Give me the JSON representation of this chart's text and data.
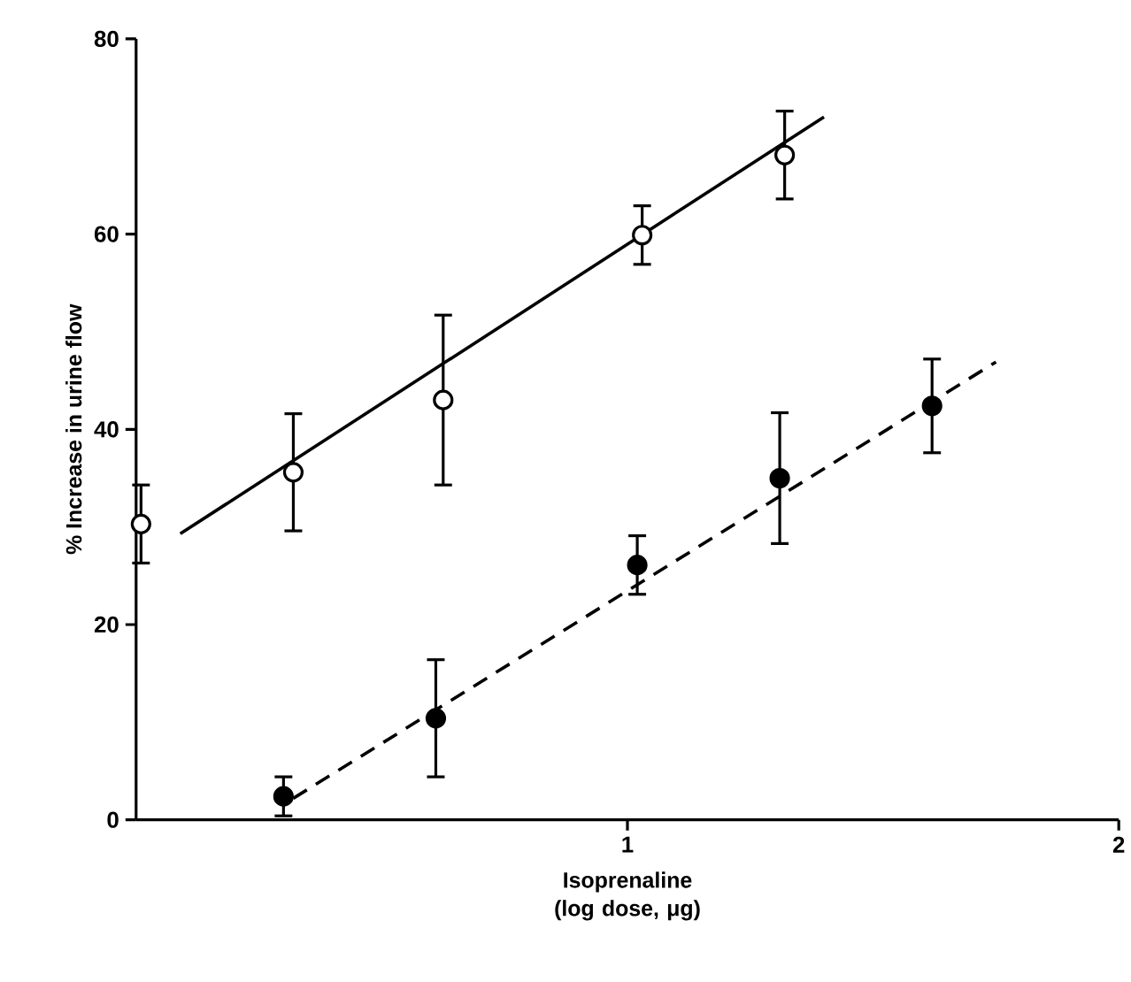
{
  "chart_data": {
    "type": "scatter",
    "xlabel": "Isoprenaline (log dose, μg)",
    "ylabel": "% Increase in urine flow",
    "xlim": [
      0,
      2
    ],
    "ylim": [
      0,
      80
    ],
    "xticks": [
      {
        "value": 1,
        "label": "1"
      },
      {
        "value": 2,
        "label": "2"
      }
    ],
    "yticks": [
      0,
      20,
      40,
      60,
      80
    ],
    "grid": false,
    "marker": "circle",
    "series": [
      {
        "color": "#000000",
        "x": [
          0.01,
          0.32,
          0.625,
          1.03,
          1.32
        ],
        "values": [
          30.3,
          35.6,
          43,
          59.9,
          68.1
        ],
        "errors": [
          4,
          6,
          8.7,
          3,
          4.5
        ]
      },
      {
        "type": "line",
        "color": "#000000",
        "line_style": "solid",
        "marker": "none",
        "x": [
          0.09,
          1.4
        ],
        "values": [
          29.3,
          72
        ]
      },
      {
        "color": "#000000",
        "x": [
          0.3,
          0.61,
          1.02,
          1.31,
          1.62
        ],
        "values": [
          2.4,
          10.4,
          26.1,
          35,
          42.4
        ],
        "errors": [
          2,
          6,
          3,
          6.7,
          4.8
        ]
      },
      {
        "type": "line",
        "color": "#000000",
        "line_style": "dashed",
        "marker": "none",
        "x": [
          0.32,
          1.75
        ],
        "values": [
          2.2,
          46.9
        ]
      }
    ]
  }
}
